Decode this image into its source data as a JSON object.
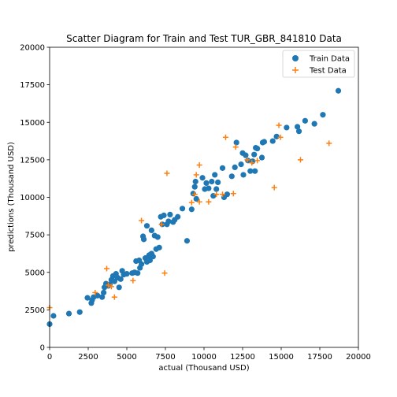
{
  "chart_data": {
    "type": "scatter",
    "title": "Scatter Diagram for Train and Test TUR_GBR_841810 Data",
    "xlabel": "actual (Thousand USD)",
    "ylabel": "predictions (Thousand USD)",
    "xlim": [
      0,
      20000
    ],
    "ylim": [
      0,
      20000
    ],
    "xticks": [
      0,
      2500,
      5000,
      7500,
      10000,
      12500,
      15000,
      17500,
      20000
    ],
    "yticks": [
      0,
      2500,
      5000,
      7500,
      10000,
      12500,
      15000,
      17500,
      20000
    ],
    "grid": false,
    "legend_position": "top-right",
    "series": [
      {
        "name": "Train Data",
        "marker": "circle",
        "color": "#1f77b4",
        "points": [
          [
            0,
            1550
          ],
          [
            250,
            2100
          ],
          [
            1250,
            2250
          ],
          [
            1950,
            2350
          ],
          [
            2450,
            3300
          ],
          [
            2700,
            2950
          ],
          [
            2750,
            3150
          ],
          [
            2850,
            3350
          ],
          [
            3100,
            3450
          ],
          [
            3400,
            3350
          ],
          [
            3500,
            3650
          ],
          [
            3550,
            4000
          ],
          [
            3650,
            4250
          ],
          [
            3800,
            4100
          ],
          [
            3900,
            4200
          ],
          [
            4000,
            4500
          ],
          [
            4100,
            4750
          ],
          [
            4200,
            4400
          ],
          [
            4300,
            4900
          ],
          [
            4400,
            4650
          ],
          [
            4500,
            4000
          ],
          [
            4600,
            4550
          ],
          [
            4700,
            5100
          ],
          [
            4800,
            4850
          ],
          [
            5000,
            4900
          ],
          [
            5350,
            4950
          ],
          [
            5500,
            5000
          ],
          [
            5600,
            5750
          ],
          [
            5700,
            4950
          ],
          [
            5800,
            5800
          ],
          [
            5850,
            5300
          ],
          [
            5950,
            5550
          ],
          [
            6050,
            7400
          ],
          [
            6100,
            7200
          ],
          [
            6200,
            5950
          ],
          [
            6300,
            5700
          ],
          [
            6300,
            8100
          ],
          [
            6400,
            6050
          ],
          [
            6450,
            6150
          ],
          [
            6500,
            5800
          ],
          [
            6600,
            6250
          ],
          [
            6600,
            7800
          ],
          [
            6700,
            6050
          ],
          [
            6800,
            7450
          ],
          [
            6900,
            6550
          ],
          [
            7000,
            7350
          ],
          [
            7100,
            6650
          ],
          [
            7200,
            8700
          ],
          [
            7300,
            8200
          ],
          [
            7400,
            8800
          ],
          [
            7600,
            8200
          ],
          [
            7700,
            8400
          ],
          [
            7800,
            8850
          ],
          [
            8000,
            8350
          ],
          [
            8100,
            8500
          ],
          [
            8300,
            8700
          ],
          [
            8600,
            9250
          ],
          [
            8900,
            7100
          ],
          [
            9200,
            9200
          ],
          [
            9300,
            10250
          ],
          [
            9400,
            10700
          ],
          [
            9450,
            11050
          ],
          [
            9500,
            9900
          ],
          [
            9900,
            11300
          ],
          [
            10050,
            10550
          ],
          [
            10150,
            10950
          ],
          [
            10300,
            10600
          ],
          [
            10500,
            11050
          ],
          [
            10600,
            10100
          ],
          [
            10700,
            11500
          ],
          [
            10800,
            10550
          ],
          [
            10900,
            11000
          ],
          [
            11200,
            11950
          ],
          [
            11300,
            10000
          ],
          [
            11500,
            10200
          ],
          [
            11800,
            11400
          ],
          [
            12000,
            12000
          ],
          [
            12100,
            13650
          ],
          [
            12400,
            12200
          ],
          [
            12500,
            12950
          ],
          [
            12550,
            11500
          ],
          [
            12700,
            12800
          ],
          [
            12850,
            12450
          ],
          [
            13000,
            11750
          ],
          [
            13150,
            12400
          ],
          [
            13250,
            12850
          ],
          [
            13300,
            11750
          ],
          [
            13350,
            13300
          ],
          [
            13450,
            13250
          ],
          [
            13750,
            12650
          ],
          [
            13800,
            13650
          ],
          [
            13900,
            13700
          ],
          [
            14450,
            13750
          ],
          [
            14700,
            14050
          ],
          [
            15350,
            14650
          ],
          [
            16050,
            14700
          ],
          [
            16150,
            14400
          ],
          [
            16550,
            15100
          ],
          [
            17150,
            14900
          ],
          [
            17700,
            15500
          ],
          [
            18700,
            17100
          ]
        ]
      },
      {
        "name": "Test Data",
        "marker": "plus",
        "color": "#ff7f0e",
        "points": [
          [
            0,
            2650
          ],
          [
            2950,
            3650
          ],
          [
            3700,
            5250
          ],
          [
            3800,
            4150
          ],
          [
            4200,
            3350
          ],
          [
            4000,
            4050
          ],
          [
            5400,
            4450
          ],
          [
            5950,
            8450
          ],
          [
            7250,
            8200
          ],
          [
            7450,
            4950
          ],
          [
            7600,
            11600
          ],
          [
            9200,
            9650
          ],
          [
            9400,
            10200
          ],
          [
            9500,
            11500
          ],
          [
            9700,
            12150
          ],
          [
            9700,
            9700
          ],
          [
            10300,
            9700
          ],
          [
            10800,
            10200
          ],
          [
            11200,
            10200
          ],
          [
            11400,
            14000
          ],
          [
            11900,
            10250
          ],
          [
            12050,
            13350
          ],
          [
            12800,
            12500
          ],
          [
            13100,
            12300
          ],
          [
            13450,
            12450
          ],
          [
            14550,
            10650
          ],
          [
            14850,
            14800
          ],
          [
            14950,
            14000
          ],
          [
            16250,
            12500
          ],
          [
            18100,
            13600
          ]
        ]
      }
    ]
  }
}
